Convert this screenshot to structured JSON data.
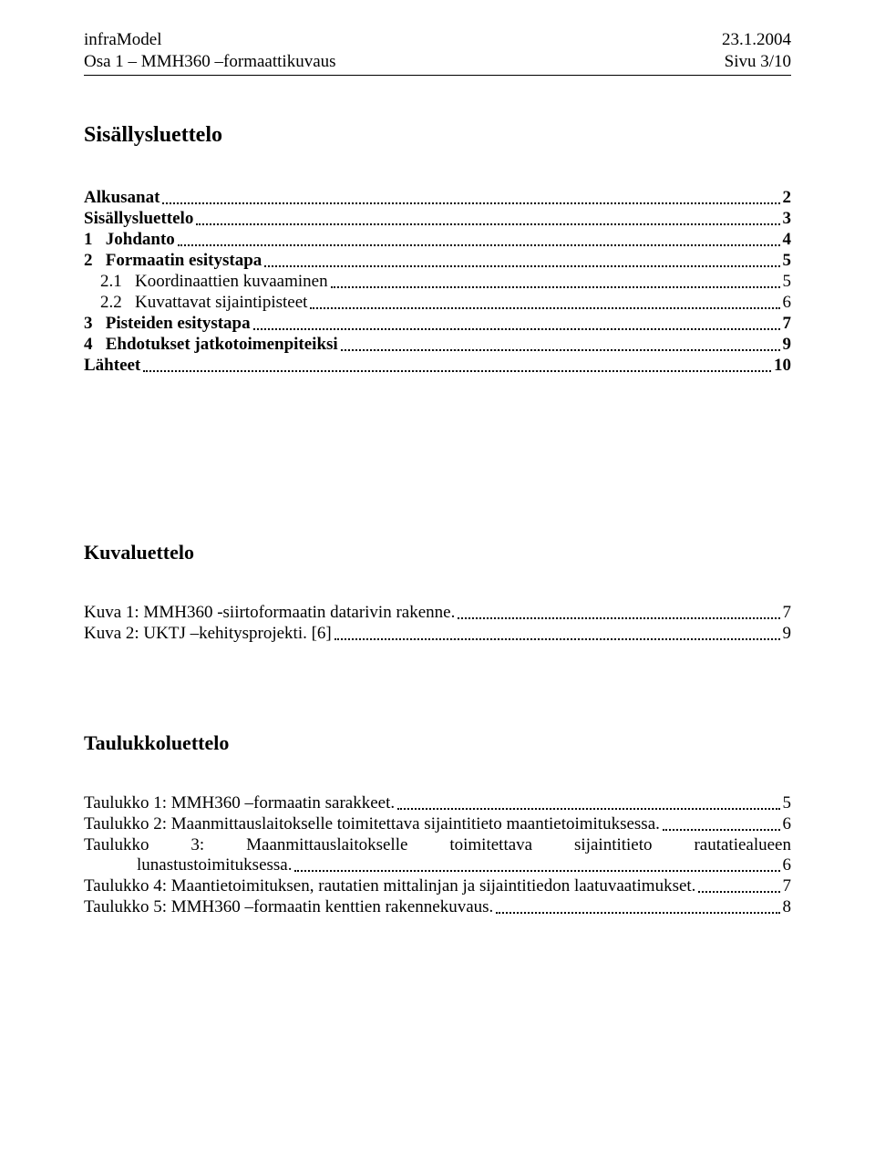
{
  "header": {
    "left_line1": "infraModel",
    "left_line2": "Osa 1 – MMH360 –formaattikuvaus",
    "right_line1": "23.1.2004",
    "right_line2": "Sivu 3/10"
  },
  "title": "Sisällysluettelo",
  "toc": [
    {
      "label": "Alkusanat",
      "page": "2",
      "bold": true,
      "indent": 0
    },
    {
      "label": "Sisällysluettelo",
      "page": "3",
      "bold": true,
      "indent": 0
    },
    {
      "label": "1   Johdanto",
      "page": "4",
      "bold": true,
      "indent": 0
    },
    {
      "label": "2   Formaatin esitystapa",
      "page": "5",
      "bold": true,
      "indent": 0
    },
    {
      "label": "2.1   Koordinaattien kuvaaminen",
      "page": "5",
      "bold": false,
      "indent": 1
    },
    {
      "label": "2.2   Kuvattavat sijaintipisteet",
      "page": "6",
      "bold": false,
      "indent": 1
    },
    {
      "label": "3   Pisteiden esitystapa",
      "page": "7",
      "bold": true,
      "indent": 0
    },
    {
      "label": "4   Ehdotukset jatkotoimenpiteiksi",
      "page": "9",
      "bold": true,
      "indent": 0
    },
    {
      "label": "Lähteet",
      "page": "10",
      "bold": true,
      "indent": 0
    }
  ],
  "figlist_title": "Kuvaluettelo",
  "figures": [
    {
      "label": "Kuva 1: MMH360 -siirtoformaatin datarivin rakenne. ",
      "page": "7"
    },
    {
      "label": "Kuva 2: UKTJ –kehitysprojekti. [6]",
      "page": "9"
    }
  ],
  "tablist_title": "Taulukkoluettelo",
  "tables": {
    "t1": {
      "label": "Taulukko 1: MMH360 –formaatin sarakkeet. ",
      "page": "5"
    },
    "t2": {
      "label": "Taulukko 2: Maanmittauslaitokselle toimitettava sijaintitieto maantietoimituksessa. ",
      "page": "6"
    },
    "t3": {
      "line1_w1": "Taulukko",
      "line1_w2": "3:",
      "line1_w3": "Maanmittauslaitokselle",
      "line1_w4": "toimitettava",
      "line1_w5": "sijaintitieto",
      "line1_w6": "rautatiealueen",
      "line2_label": "lunastustoimituksessa. ",
      "page": "6"
    },
    "t4": {
      "label": "Taulukko 4: Maantietoimituksen, rautatien mittalinjan ja sijaintitiedon laatuvaatimukset. ",
      "page": "7"
    },
    "t5": {
      "label": "Taulukko 5: MMH360 –formaatin kenttien rakennekuvaus. ",
      "page": "8"
    }
  }
}
